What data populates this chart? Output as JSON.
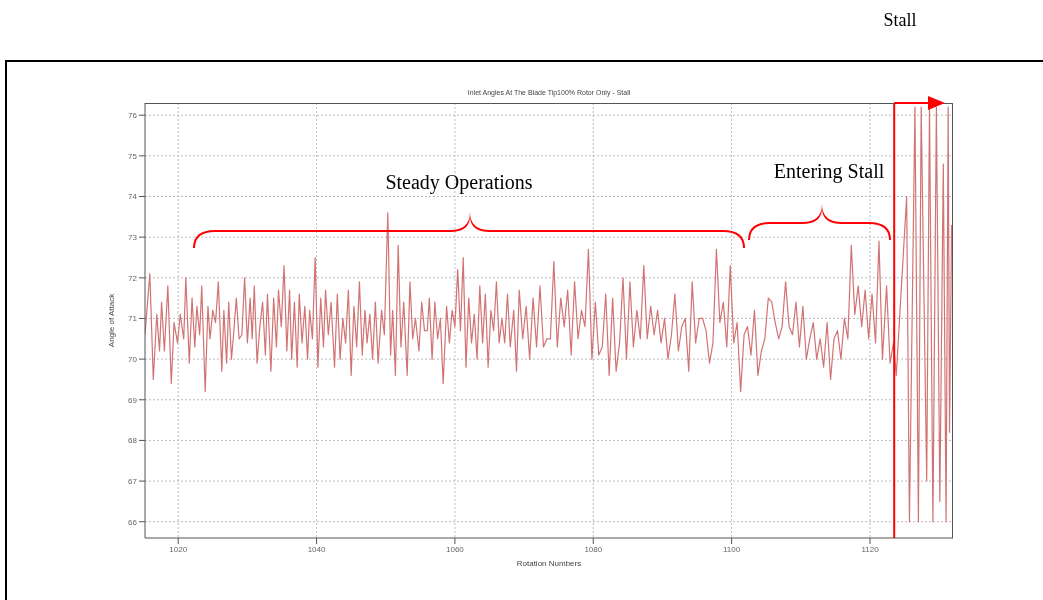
{
  "chart_data": {
    "type": "line",
    "title": "Inlet Angles At The Blade Tip100% Rotor Only - Stall",
    "xlabel": "Rotation Numbers",
    "ylabel": "Angle of Attack",
    "xlim": [
      1015.2,
      1132
    ],
    "ylim": [
      65.6,
      76.3
    ],
    "xticks": [
      1020,
      1040,
      1060,
      1080,
      1100,
      1120
    ],
    "yticks": [
      66,
      67,
      68,
      69,
      70,
      71,
      72,
      73,
      74,
      75,
      76
    ],
    "grid": true,
    "marker": "none",
    "line_style": "solid",
    "annotations": [
      "Steady Operations",
      "Entering Stall",
      "Stall"
    ],
    "ref_lines": [
      {
        "axis": "x",
        "value": 1123.5,
        "color": "#ff0000"
      }
    ],
    "x": [
      1015.2,
      1015.9,
      1016.4,
      1016.9,
      1017.3,
      1017.6,
      1018.0,
      1018.5,
      1019.0,
      1019.4,
      1019.9,
      1020.3,
      1020.8,
      1021.1,
      1021.6,
      1022.0,
      1022.4,
      1022.7,
      1023.1,
      1023.4,
      1023.9,
      1024.3,
      1024.6,
      1025.0,
      1025.4,
      1025.8,
      1026.3,
      1026.6,
      1027.0,
      1027.3,
      1027.7,
      1028.0,
      1028.4,
      1028.8,
      1029.2,
      1029.6,
      1030.0,
      1030.4,
      1030.7,
      1031.0,
      1031.4,
      1031.8,
      1032.2,
      1032.6,
      1032.9,
      1033.4,
      1033.8,
      1034.2,
      1034.5,
      1034.9,
      1035.3,
      1035.7,
      1036.1,
      1036.4,
      1036.8,
      1037.2,
      1037.5,
      1037.9,
      1038.3,
      1038.7,
      1039.0,
      1039.4,
      1039.8,
      1040.2,
      1040.6,
      1041.0,
      1041.3,
      1041.7,
      1042.1,
      1042.6,
      1043.0,
      1043.4,
      1043.8,
      1044.2,
      1044.6,
      1045.0,
      1045.4,
      1045.8,
      1046.2,
      1046.6,
      1047.0,
      1047.3,
      1047.7,
      1048.1,
      1048.5,
      1048.9,
      1049.4,
      1049.8,
      1050.3,
      1050.7,
      1051.0,
      1051.4,
      1051.8,
      1052.2,
      1052.6,
      1053.1,
      1053.5,
      1053.9,
      1054.3,
      1054.8,
      1055.2,
      1055.6,
      1056.0,
      1056.3,
      1056.7,
      1057.1,
      1057.5,
      1057.9,
      1058.3,
      1058.8,
      1059.2,
      1059.6,
      1060.0,
      1060.4,
      1060.8,
      1061.2,
      1061.6,
      1062.0,
      1062.4,
      1062.8,
      1063.2,
      1063.6,
      1064.0,
      1064.4,
      1064.8,
      1065.2,
      1065.6,
      1066.0,
      1066.4,
      1066.8,
      1067.2,
      1067.6,
      1068.0,
      1068.5,
      1068.9,
      1069.3,
      1069.8,
      1070.3,
      1070.8,
      1071.3,
      1071.8,
      1072.3,
      1072.8,
      1073.3,
      1073.8,
      1074.3,
      1074.8,
      1075.3,
      1075.8,
      1076.3,
      1076.8,
      1077.3,
      1077.8,
      1078.3,
      1078.8,
      1079.3,
      1079.8,
      1080.3,
      1080.8,
      1081.3,
      1081.8,
      1082.3,
      1082.8,
      1083.3,
      1083.8,
      1084.3,
      1084.8,
      1085.3,
      1085.8,
      1086.3,
      1086.8,
      1087.3,
      1087.8,
      1088.3,
      1088.8,
      1089.3,
      1089.8,
      1090.3,
      1090.8,
      1091.3,
      1091.8,
      1092.3,
      1092.8,
      1093.3,
      1093.8,
      1094.3,
      1094.8,
      1095.3,
      1095.8,
      1096.3,
      1096.8,
      1097.3,
      1097.8,
      1098.3,
      1098.8,
      1099.3,
      1099.8,
      1100.3,
      1100.8,
      1101.3,
      1101.8,
      1102.3,
      1102.8,
      1103.3,
      1103.8,
      1104.3,
      1104.8,
      1105.3,
      1105.8,
      1106.3,
      1106.8,
      1107.3,
      1107.8,
      1108.3,
      1108.8,
      1109.3,
      1109.8,
      1110.3,
      1110.8,
      1111.3,
      1111.8,
      1112.3,
      1112.8,
      1113.3,
      1113.8,
      1114.3,
      1114.8,
      1115.3,
      1115.8,
      1116.3,
      1116.8,
      1117.3,
      1117.8,
      1118.3,
      1118.8,
      1119.3,
      1119.8,
      1120.3,
      1120.8,
      1121.3,
      1121.8,
      1122.4,
      1122.9,
      1123.4,
      1123.8,
      1125.3,
      1125.7,
      1126.5,
      1127.0,
      1127.4,
      1128.2,
      1128.6,
      1129.1,
      1129.6,
      1130.1,
      1130.6,
      1131.0,
      1131.3,
      1131.5,
      1131.8
    ],
    "series": [
      {
        "color": "#d27373",
        "values": [
          70.6,
          72.1,
          69.5,
          71.1,
          70.2,
          71.4,
          70.2,
          71.8,
          69.4,
          70.9,
          70.4,
          71.1,
          70.5,
          72.0,
          69.9,
          71.5,
          70.3,
          71.3,
          70.6,
          71.8,
          69.2,
          71.3,
          70.5,
          71.2,
          70.9,
          71.9,
          69.7,
          71.2,
          69.9,
          71.4,
          70.0,
          70.6,
          71.5,
          70.5,
          70.6,
          72.0,
          70.4,
          71.5,
          70.5,
          71.8,
          69.9,
          70.8,
          71.4,
          70.1,
          71.6,
          69.7,
          71.5,
          70.3,
          71.7,
          70.8,
          72.3,
          70.2,
          71.7,
          70.0,
          71.4,
          69.8,
          71.6,
          70.4,
          71.3,
          70.0,
          71.2,
          70.5,
          72.5,
          69.8,
          71.5,
          70.3,
          71.7,
          70.6,
          71.4,
          69.8,
          71.6,
          70.0,
          71.0,
          70.4,
          71.7,
          69.6,
          71.3,
          70.3,
          71.9,
          70.1,
          71.2,
          70.4,
          71.1,
          70.0,
          71.4,
          69.9,
          71.2,
          70.6,
          73.6,
          70.1,
          71.2,
          69.6,
          72.8,
          70.3,
          71.4,
          69.6,
          71.9,
          70.5,
          71.0,
          70.2,
          71.4,
          70.7,
          70.7,
          71.5,
          70.0,
          71.4,
          70.5,
          71.0,
          69.4,
          71.3,
          70.4,
          71.2,
          70.8,
          72.2,
          70.7,
          72.5,
          69.8,
          71.5,
          70.4,
          71.1,
          70.0,
          71.8,
          70.4,
          71.6,
          69.8,
          71.2,
          70.7,
          71.9,
          70.4,
          71.0,
          70.4,
          71.6,
          70.3,
          71.2,
          69.7,
          71.7,
          70.5,
          71.3,
          70.0,
          71.5,
          70.3,
          71.8,
          70.3,
          70.5,
          70.5,
          72.4,
          70.3,
          71.5,
          70.8,
          71.7,
          70.1,
          71.9,
          70.5,
          71.2,
          70.8,
          72.7,
          70.0,
          71.4,
          70.1,
          70.3,
          71.6,
          69.6,
          71.5,
          69.7,
          70.4,
          72.0,
          70.0,
          71.9,
          70.3,
          71.2,
          70.5,
          72.3,
          70.5,
          71.3,
          70.6,
          71.2,
          70.4,
          71.0,
          70.0,
          70.6,
          71.6,
          70.2,
          70.8,
          71.0,
          69.7,
          71.9,
          70.4,
          71.0,
          71.0,
          70.7,
          69.9,
          70.4,
          72.7,
          70.9,
          71.4,
          70.3,
          72.3,
          70.4,
          70.9,
          69.2,
          70.6,
          70.8,
          70.1,
          71.2,
          69.6,
          70.2,
          70.5,
          71.5,
          71.4,
          70.9,
          70.5,
          70.8,
          71.9,
          70.8,
          70.6,
          71.4,
          70.3,
          71.3,
          70.0,
          70.5,
          70.9,
          70.0,
          70.5,
          69.8,
          70.9,
          69.5,
          70.5,
          70.7,
          70.0,
          71.0,
          70.5,
          72.8,
          71.1,
          71.8,
          70.8,
          71.7,
          70.5,
          71.6,
          70.4,
          72.9,
          70.0,
          71.8,
          69.9,
          70.4,
          69.6,
          74.0,
          66.0,
          76.2,
          66.0,
          76.2,
          67.0,
          76.2,
          66.0,
          76.2,
          66.5,
          74.8,
          66.0,
          76.2,
          68.2,
          73.3
        ]
      }
    ]
  }
}
